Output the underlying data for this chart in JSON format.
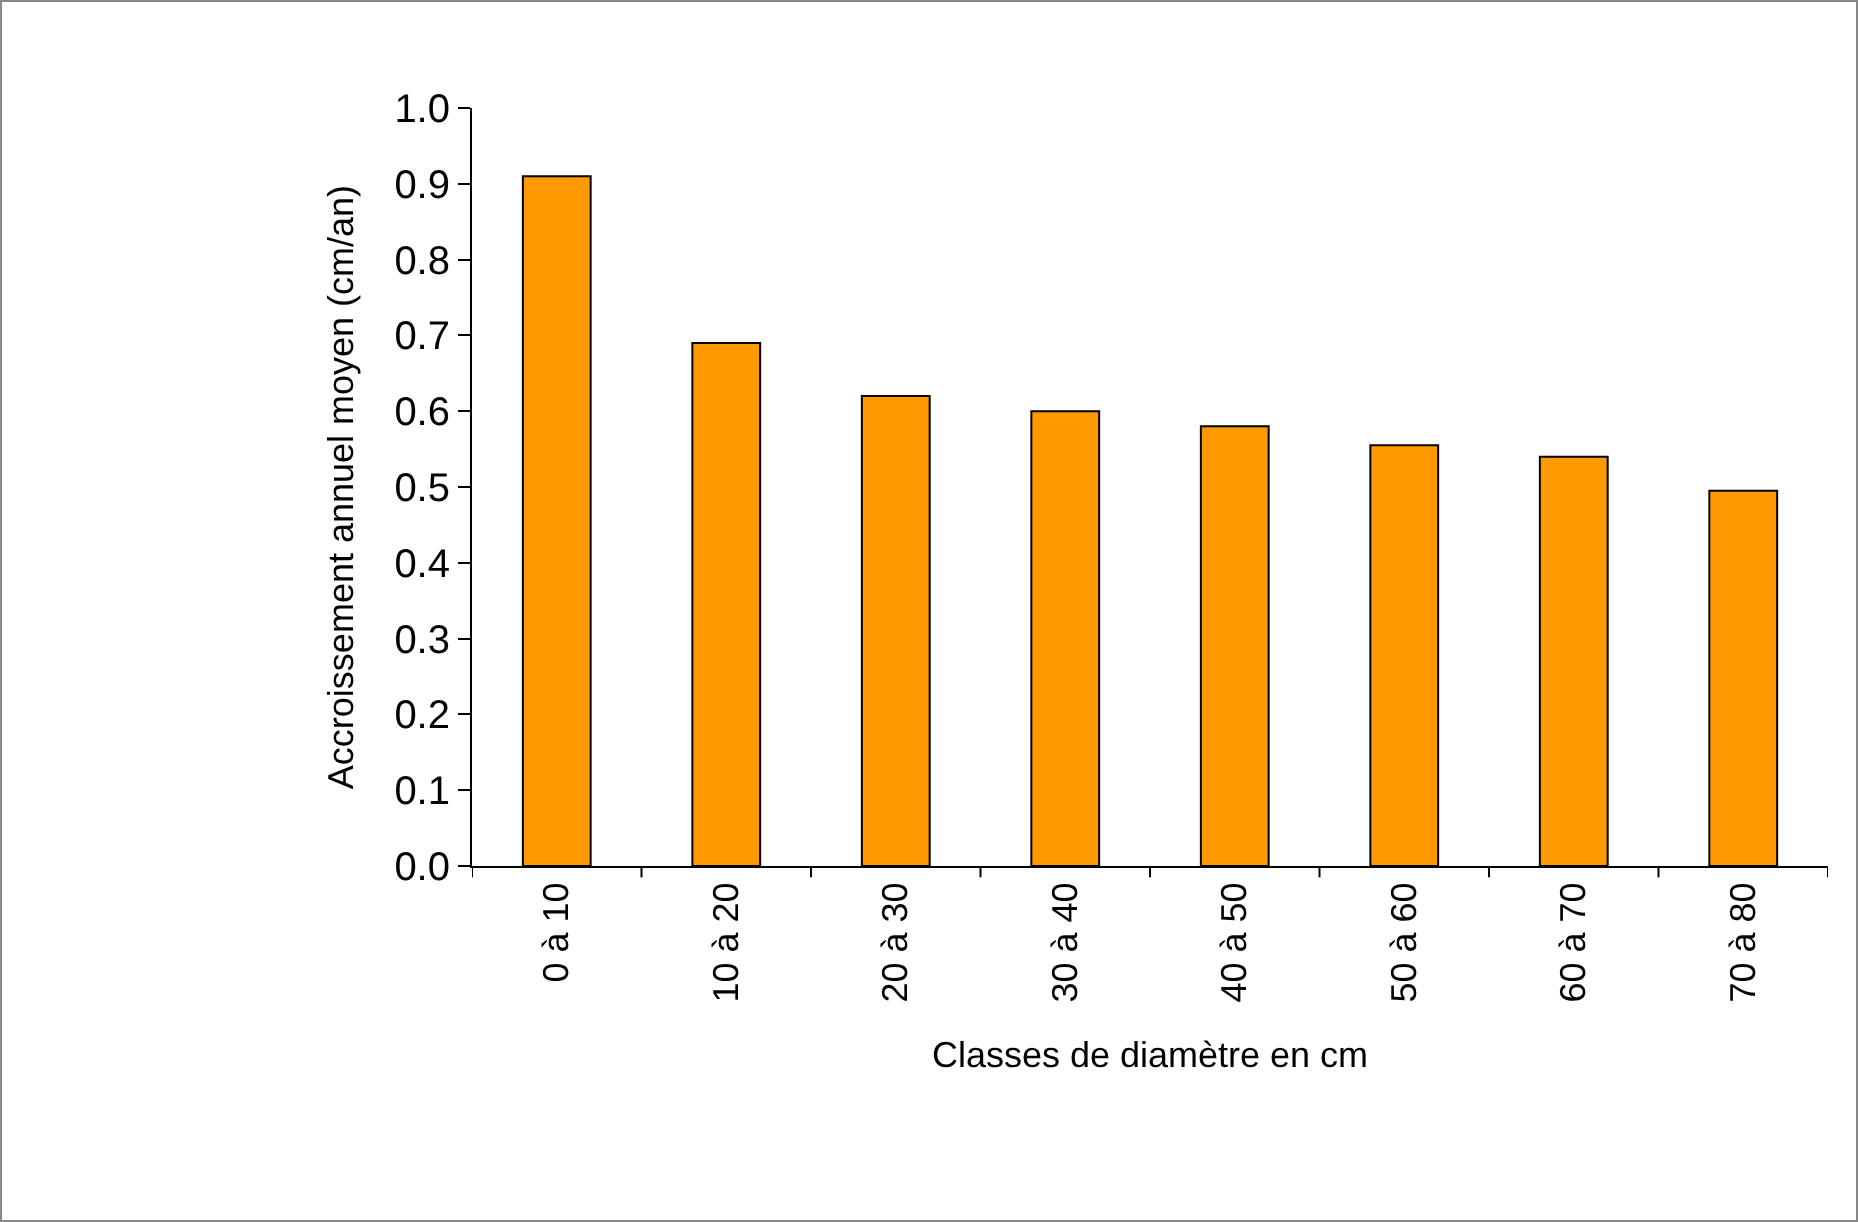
{
  "chart_data": {
    "type": "bar",
    "xlabel": "Classes de diamètre en cm",
    "ylabel": "Accroissement annuel moyen (cm/an)",
    "categories": [
      "0 à 10",
      "10 à 20",
      "20 à 30",
      "30 à 40",
      "40 à 50",
      "50 à 60",
      "60 à 70",
      "70 à 80"
    ],
    "values": [
      0.91,
      0.69,
      0.62,
      0.6,
      0.58,
      0.555,
      0.54,
      0.495
    ],
    "color": "#ff9900",
    "ylim": [
      0,
      1
    ],
    "yticks": [
      {
        "value": 0,
        "label": "0.0"
      },
      {
        "value": 0.1,
        "label": "0.1"
      },
      {
        "value": 0.2,
        "label": "0.2"
      },
      {
        "value": 0.3,
        "label": "0.3"
      },
      {
        "value": 0.4,
        "label": "0.4"
      },
      {
        "value": 0.5,
        "label": "0.5"
      },
      {
        "value": 0.6,
        "label": "0.6"
      },
      {
        "value": 0.7,
        "label": "0.7"
      },
      {
        "value": 0.8,
        "label": "0.8"
      },
      {
        "value": 0.9,
        "label": "0.9"
      },
      {
        "value": 1,
        "label": "1.0"
      }
    ],
    "grid": false,
    "legend": false
  }
}
